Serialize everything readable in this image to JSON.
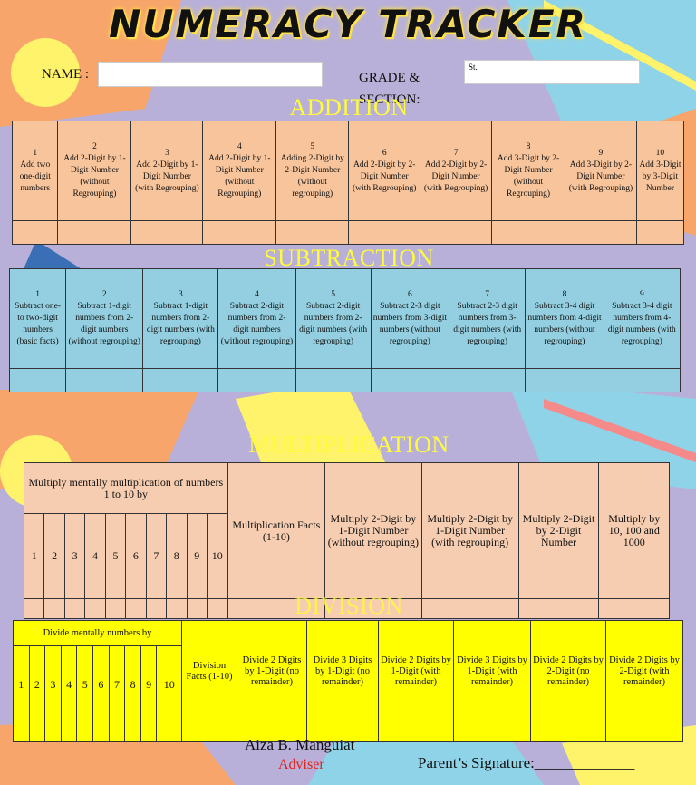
{
  "title": "NUMERACY TRACKER",
  "header": {
    "name_label": "NAME :",
    "name_value": "",
    "grade_label": "GRADE &",
    "section_label": "SECTION:",
    "grade_value": "St."
  },
  "addition": {
    "title": "ADDITION",
    "items": [
      {
        "num": "1",
        "text": "Add two one-digit numbers"
      },
      {
        "num": "2",
        "text": "Add 2-Digit by 1-Digit Number (without Regrouping)"
      },
      {
        "num": "3",
        "text": "Add 2-Digit by 1-Digit Number (with Regrouping)"
      },
      {
        "num": "4",
        "text": "Add 2-Digit by 1-Digit Number (without Regrouping)"
      },
      {
        "num": "5",
        "text": "Adding 2-Digit by 2-Digit Number (without regrouping)"
      },
      {
        "num": "6",
        "text": "Add 2-Digit by 2-Digit Number (with Regrouping)"
      },
      {
        "num": "7",
        "text": "Add 2-Digit by 2-Digit Number (with Regrouping)"
      },
      {
        "num": "8",
        "text": "Add 3-Digit by 2-Digit Number (without Regrouping)"
      },
      {
        "num": "9",
        "text": "Add 3-Digit by 2-Digit Number (with Regrouping)"
      },
      {
        "num": "10",
        "text": "Add 3-Digit by 3-Digit Number"
      }
    ]
  },
  "subtraction": {
    "title": "SUBTRACTION",
    "items": [
      {
        "num": "1",
        "text": "Subtract one- to two-digit numbers (basic facts)"
      },
      {
        "num": "2",
        "text": "Subtract 1-digit numbers from 2-digit numbers (without regrouping)"
      },
      {
        "num": "3",
        "text": "Subtract 1-digit numbers from 2-digit numbers (with regrouping)"
      },
      {
        "num": "4",
        "text": "Subtract 2-digit numbers from 2-digit numbers (without regrouping)"
      },
      {
        "num": "5",
        "text": "Subtract 2-digit numbers from 2-digit numbers (with regrouping)"
      },
      {
        "num": "6",
        "text": "Subtract 2-3 digit numbers from 3-digit numbers (without regrouping)"
      },
      {
        "num": "7",
        "text": "Subtract 2-3 digit numbers from 3-digit numbers (with regrouping)"
      },
      {
        "num": "8",
        "text": "Subtract 3-4 digit numbers from 4-digit numbers (without regrouping)"
      },
      {
        "num": "9",
        "text": "Subtract 3-4 digit numbers from 4-digit numbers (with regrouping)"
      }
    ]
  },
  "multiplication": {
    "title": "MULTIPLICATION",
    "mental_header": "Multiply mentally multiplication of numbers 1 to 10 by",
    "numbers": [
      "1",
      "2",
      "3",
      "4",
      "5",
      "6",
      "7",
      "8",
      "9",
      "10"
    ],
    "items": [
      "Multiplication Facts (1-10)",
      "Multiply 2-Digit by 1-Digit Number (without regrouping)",
      "Multiply 2-Digit by 1-Digit Number (with regrouping)",
      "Multiply 2-Digit by 2-Digit Number",
      "Multiply by 10, 100 and 1000"
    ]
  },
  "division": {
    "title": "DIVISION",
    "mental_header": "Divide mentally numbers by",
    "numbers": [
      "1",
      "2",
      "3",
      "4",
      "5",
      "6",
      "7",
      "8",
      "9",
      "10"
    ],
    "items": [
      "Division Facts (1-10)",
      "Divide 2 Digits by 1-Digit (no remainder)",
      "Divide 3 Digits by 1-Digit (no remainder)",
      "Divide 2 Digits by 1-Digit (with remainder)",
      "Divide 3 Digits by 1-Digit (with remainder)",
      "Divide 2 Digits by 2-Digit (no remainder)",
      "Divide 2 Digits by 2-Digit (with remainder)"
    ]
  },
  "footer": {
    "adviser_name": "Aiza B. Manguiat",
    "adviser_label": "Adviser",
    "parent_signature": "Parent’s Signature:_____________"
  },
  "colors": {
    "addition": "#f7c49b",
    "subtraction": "#93cfe0",
    "multiplication": "#f6cdb0",
    "division": "#ffff00",
    "section_title": "#fffb3a"
  }
}
